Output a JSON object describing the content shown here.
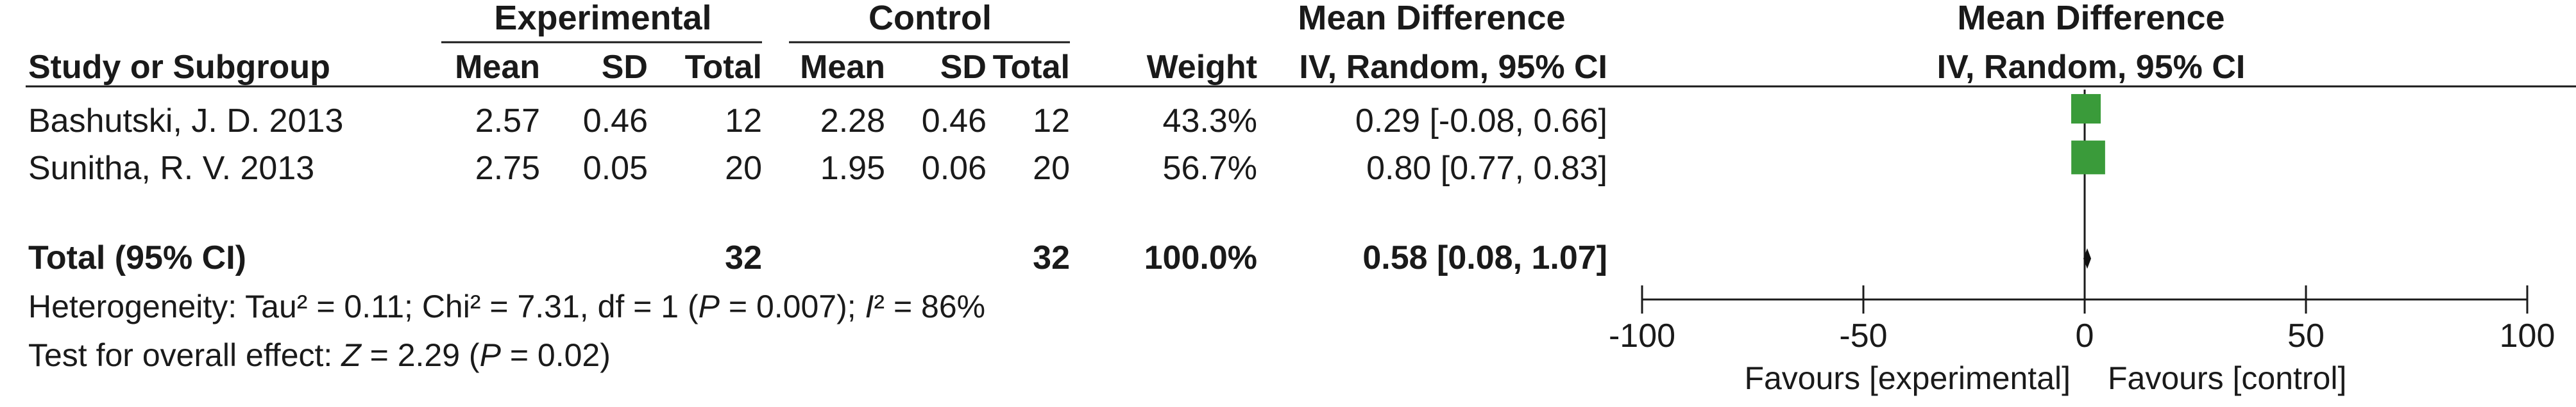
{
  "chart_data": {
    "type": "forest",
    "group_headers": {
      "experimental": "Experimental",
      "control": "Control",
      "mean_difference": "Mean Difference",
      "plot_mean_difference": "Mean Difference"
    },
    "columns": {
      "study": "Study or Subgroup",
      "exp_mean": "Mean",
      "exp_sd": "SD",
      "exp_total": "Total",
      "ctl_mean": "Mean",
      "ctl_sd": "SD",
      "ctl_total": "Total",
      "weight": "Weight",
      "md_ci": "IV, Random, 95% CI",
      "plot_subheader": "IV, Random, 95% CI"
    },
    "studies": [
      {
        "name": "Bashutski, J. D.  2013",
        "exp_mean": "2.57",
        "exp_sd": "0.46",
        "exp_total": "12",
        "ctl_mean": "2.28",
        "ctl_sd": "0.46",
        "ctl_total": "12",
        "weight": "43.3%",
        "weight_value": 43.3,
        "ci_text": "0.29 [-0.08, 0.66]",
        "md": 0.29,
        "lower": -0.08,
        "upper": 0.66
      },
      {
        "name": "Sunitha, R. V.  2013",
        "exp_mean": "2.75",
        "exp_sd": "0.05",
        "exp_total": "20",
        "ctl_mean": "1.95",
        "ctl_sd": "0.06",
        "ctl_total": "20",
        "weight": "56.7%",
        "weight_value": 56.7,
        "ci_text": "0.80 [0.77, 0.83]",
        "md": 0.8,
        "lower": 0.77,
        "upper": 0.83
      }
    ],
    "total": {
      "label": "Total (95% CI)",
      "exp_total": "32",
      "ctl_total": "32",
      "weight": "100.0%",
      "ci_text": "0.58 [0.08, 1.07]",
      "md": 0.58,
      "lower": 0.08,
      "upper": 1.07
    },
    "heterogeneity": {
      "prefix": "Heterogeneity: Tau² = 0.11; Chi² = 7.31, df = 1 (",
      "p_symbol": "P",
      "p_part": " = 0.007); ",
      "i_symbol": "I",
      "i_part": "² = 86%"
    },
    "overall_effect": {
      "prefix": "Test for overall effect: ",
      "z_symbol": "Z",
      "z_part": " = 2.29 (",
      "p_symbol": "P",
      "p_part": " = 0.02)"
    },
    "xlim": [
      -100,
      100
    ],
    "ticks": [
      -100,
      -50,
      0,
      50,
      100
    ],
    "tick_labels": [
      "-100",
      "-50",
      "0",
      "50",
      "100"
    ],
    "favours_left": "Favours [experimental]",
    "favours_right": "Favours [control]",
    "colors": {
      "square": "#3a9b3a",
      "text": "#1a1a1a",
      "line": "#1a1a1a"
    }
  }
}
